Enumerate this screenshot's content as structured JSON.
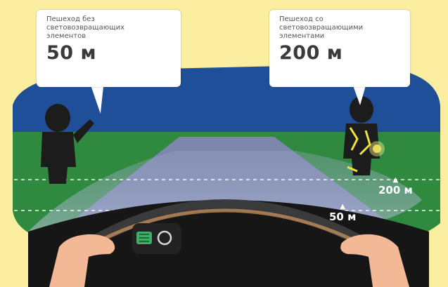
{
  "bubbles": {
    "left": {
      "description": "Пешеход без\nсветовозвращающих\nэлементов",
      "distance": "50 м"
    },
    "right": {
      "description": "Пешеход со\nсветовозвращающими\nэлементами",
      "distance": "200 м"
    }
  },
  "road_markers": {
    "far": "200 м",
    "near": "50 м"
  },
  "colors": {
    "background": "#fbeea0",
    "sky": "#1f4f98",
    "grass": "#2f8a3f",
    "road": "#7d86ad",
    "dashboard": "#161616",
    "reflector": "#f3e23a"
  },
  "icons": [
    "pedestrian-left-icon",
    "pedestrian-right-icon",
    "steering-wheel-icon",
    "headlight-icon",
    "reflector-glow-icon"
  ]
}
